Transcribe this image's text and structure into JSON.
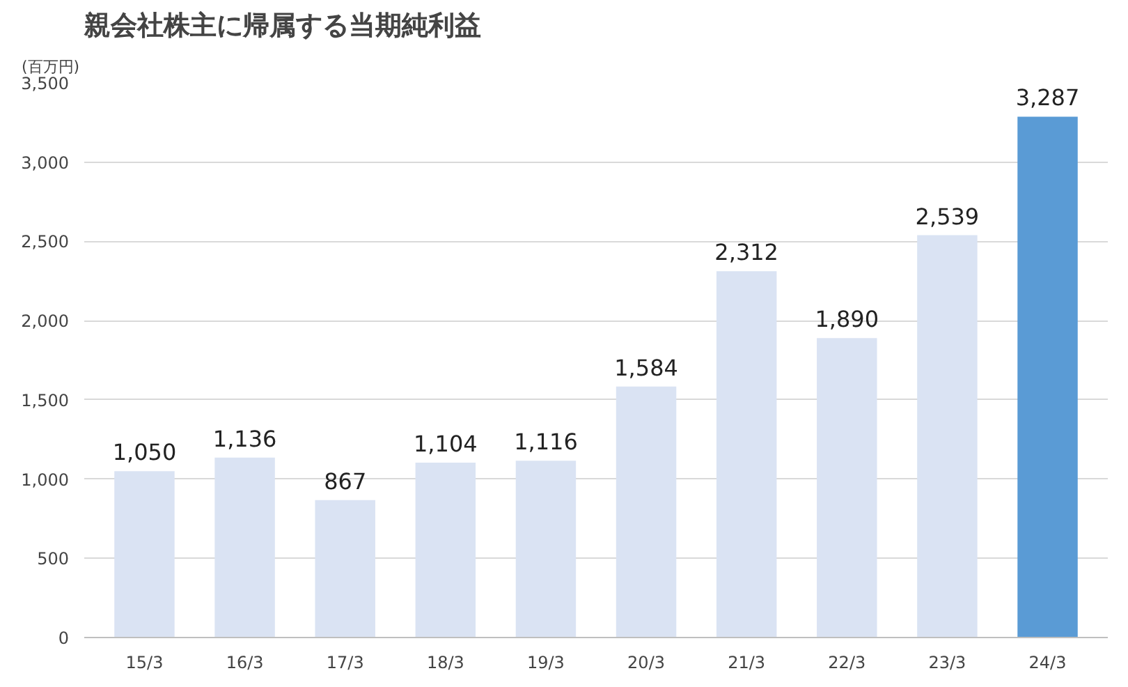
{
  "chart_data": {
    "type": "bar",
    "title": "親会社株主に帰属する当期純利益",
    "ylabel": "(百万円)",
    "categories": [
      "15/3",
      "16/3",
      "17/3",
      "18/3",
      "19/3",
      "20/3",
      "21/3",
      "22/3",
      "23/3",
      "24/3"
    ],
    "values": [
      1050,
      1136,
      867,
      1104,
      1116,
      1584,
      2312,
      1890,
      2539,
      3287
    ],
    "colors": [
      "#dae3f3",
      "#dae3f3",
      "#dae3f3",
      "#dae3f3",
      "#dae3f3",
      "#dae3f3",
      "#dae3f3",
      "#dae3f3",
      "#dae3f3",
      "#5a9bd5"
    ],
    "ylim": [
      0,
      3500
    ],
    "yticks": [
      0,
      {
        "value": 500,
        "label": "500"
      },
      {
        "value": 1000,
        "label": "1,000"
      },
      {
        "value": 1500,
        "label": "1,500"
      },
      {
        "value": 2000,
        "label": "2,000"
      },
      {
        "value": 2500,
        "label": "2,500"
      },
      {
        "value": 3000,
        "label": "3,000"
      },
      {
        "value": 3500,
        "label": "3,500"
      }
    ],
    "grid": "y",
    "value_labels": [
      "1,050",
      "1,136",
      "867",
      "1,104",
      "1,116",
      "1,584",
      "2,312",
      "1,890",
      "2,539",
      "3,287"
    ]
  }
}
